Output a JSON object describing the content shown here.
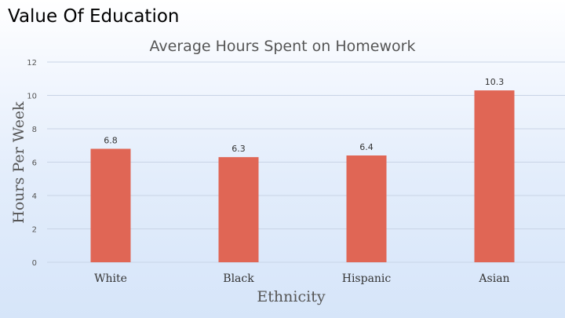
{
  "slide": {
    "title": "Value Of Education"
  },
  "chart_data": {
    "type": "bar",
    "title": "Average Hours Spent on Homework",
    "xlabel": "Ethnicity",
    "ylabel": "Hours Per Week",
    "categories": [
      "White",
      "Black",
      "Hispanic",
      "Asian"
    ],
    "values": [
      6.8,
      6.3,
      6.4,
      10.3
    ],
    "value_labels": [
      "6.8",
      "6.3",
      "6.4",
      "10.3"
    ],
    "ylim": [
      0,
      12
    ],
    "yticks": [
      0,
      2,
      4,
      6,
      8,
      10,
      12
    ],
    "grid": true,
    "legend": "none",
    "bar_color": "#e06655"
  }
}
